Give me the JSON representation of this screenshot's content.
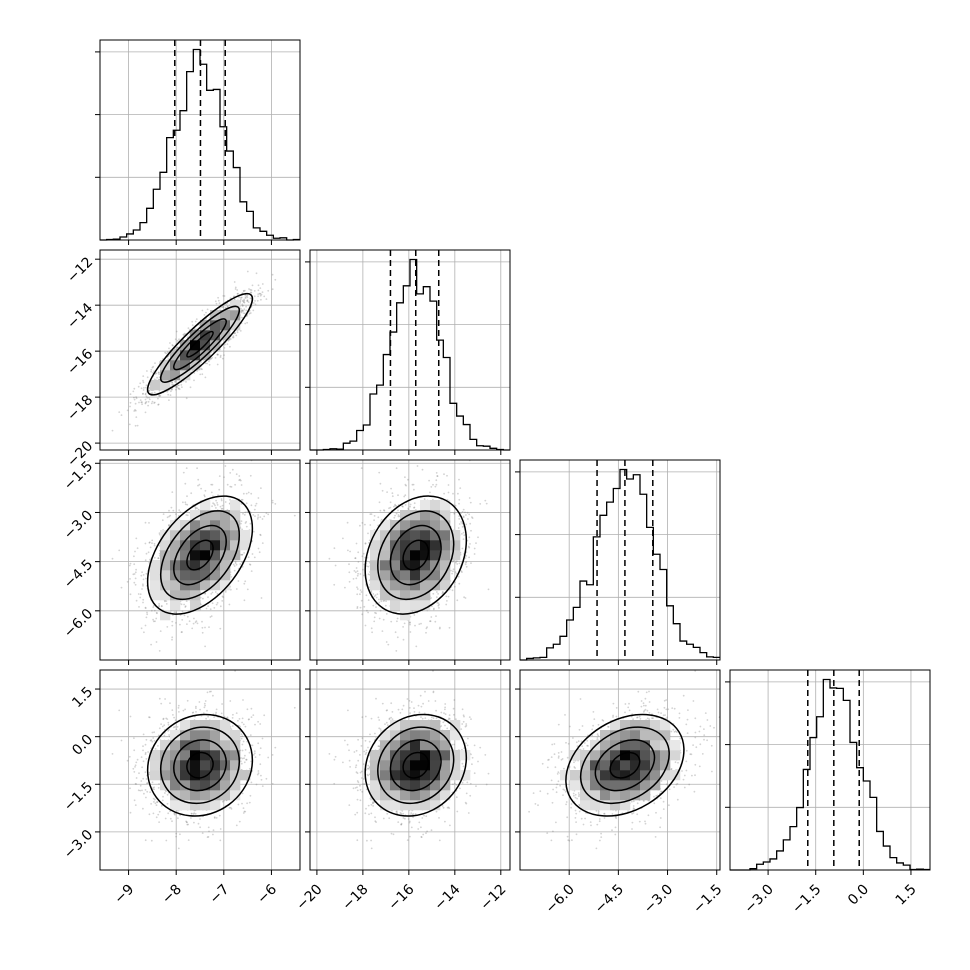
{
  "chart_data": {
    "type": "corner",
    "parameters": [
      {
        "ticks": [
          -9,
          -8,
          -7,
          -6
        ],
        "tick_labels": [
          "−9",
          "−8",
          "−7",
          "−6"
        ],
        "range": [
          -9.6,
          -5.4
        ],
        "mean": -7.5,
        "sd": 0.55,
        "quantiles": [
          -8.03,
          -7.49,
          -6.97
        ]
      },
      {
        "ticks": [
          -20,
          -18,
          -16,
          -14,
          -12
        ],
        "tick_labels": [
          "−20",
          "−18",
          "−16",
          "−14",
          "−12"
        ],
        "range": [
          -20.3,
          -11.6
        ],
        "mean": -15.7,
        "sd": 1.1,
        "quantiles": [
          -16.8,
          -15.7,
          -14.7
        ]
      },
      {
        "ticks": [
          -6.0,
          -4.5,
          -3.0,
          -1.5
        ],
        "tick_labels": [
          "−6.0",
          "−4.5",
          "−3.0",
          "−1.5"
        ],
        "range": [
          -7.5,
          -1.4
        ],
        "mean": -4.3,
        "sd": 0.9,
        "quantiles": [
          -5.15,
          -4.3,
          -3.45
        ]
      },
      {
        "ticks": [
          -3.0,
          -1.5,
          0.0,
          1.5
        ],
        "tick_labels": [
          "−3.0",
          "−1.5",
          "0.0",
          "1.5"
        ],
        "range": [
          -4.2,
          2.1
        ],
        "mean": -0.9,
        "sd": 0.8,
        "quantiles": [
          -1.75,
          -0.93,
          -0.13
        ]
      }
    ],
    "correlations": [
      [
        1,
        0.9,
        0.45,
        0.1
      ],
      [
        0.9,
        1,
        0.25,
        0.15
      ],
      [
        0.45,
        0.25,
        1,
        0.3
      ],
      [
        0.1,
        0.15,
        0.3,
        1
      ]
    ],
    "bins": 30,
    "grid": true,
    "quantile_levels": [
      0.16,
      0.5,
      0.84
    ],
    "colors": {
      "line": "#000000",
      "points": "#808080",
      "grid": "#b0b0b0"
    }
  }
}
